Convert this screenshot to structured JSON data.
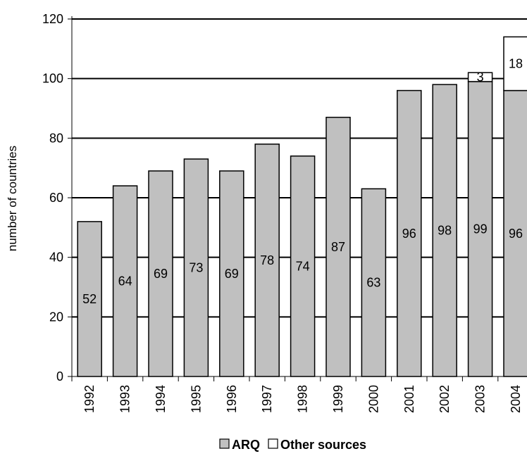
{
  "chart_data": {
    "type": "bar",
    "stacked": true,
    "title": "",
    "xlabel": "",
    "ylabel": "number of countries",
    "ylim": [
      0,
      120
    ],
    "yticks": [
      0,
      20,
      40,
      60,
      80,
      100,
      120
    ],
    "grid": true,
    "legend_position": "bottom",
    "categories": [
      "1992",
      "1993",
      "1994",
      "1995",
      "1996",
      "1997",
      "1998",
      "1999",
      "2000",
      "2001",
      "2002",
      "2003",
      "2004"
    ],
    "series": [
      {
        "name": "ARQ",
        "color": "#c0c0c0",
        "values": [
          52,
          64,
          69,
          73,
          69,
          78,
          74,
          87,
          63,
          96,
          98,
          99,
          96
        ],
        "labels": [
          "52",
          "64",
          "69",
          "73",
          "69",
          "78",
          "74",
          "87",
          "63",
          "96",
          "98",
          "99",
          "96"
        ]
      },
      {
        "name": "Other sources",
        "color": "#ffffff",
        "values": [
          0,
          0,
          0,
          0,
          0,
          0,
          0,
          0,
          0,
          0,
          0,
          3,
          18
        ],
        "labels": [
          "",
          "",
          "",
          "",
          "",
          "",
          "",
          "",
          "",
          "",
          "",
          "3",
          "18"
        ]
      }
    ]
  }
}
